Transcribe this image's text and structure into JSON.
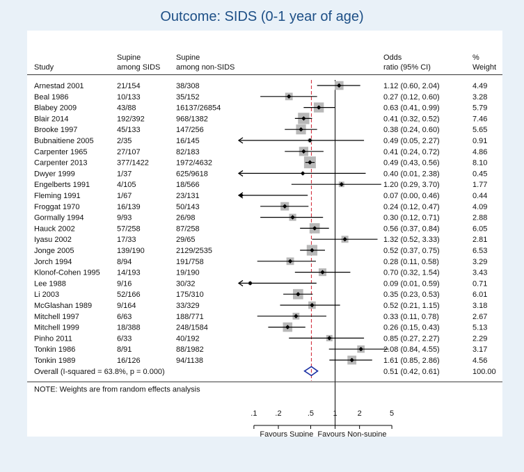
{
  "title": "Outcome: SIDS (0-1 year of age)",
  "chart_data": {
    "type": "forest",
    "columns": {
      "study": "Study",
      "col2": [
        "Supine",
        "among SIDS"
      ],
      "col3": [
        "Supine",
        "among non-SIDS"
      ],
      "col4": [
        "Odds",
        "ratio (95% CI)"
      ],
      "col5": [
        "%",
        "Weight"
      ]
    },
    "x_scale": "log",
    "x_ticks": [
      {
        "value": 0.1,
        "label": ".1"
      },
      {
        "value": 0.2,
        "label": ".2"
      },
      {
        "value": 0.5,
        "label": ".5"
      },
      {
        "value": 1,
        "label": "1"
      },
      {
        "value": 2,
        "label": "2"
      },
      {
        "value": 5,
        "label": "5"
      }
    ],
    "x_min": 0.06,
    "x_max": 6.2,
    "null_line": 1,
    "overall_line": 0.51,
    "xlabel_left": "Favours Supine",
    "xlabel_right": "Favours Non-supine",
    "studies": [
      {
        "study": "Arnestad 2001",
        "sids": "21/154",
        "nonsids": "38/308",
        "or": 1.12,
        "lo": 0.6,
        "hi": 2.04,
        "or_text": "1.12 (0.60, 2.04)",
        "weight": 4.49,
        "weight_text": "4.49"
      },
      {
        "study": "Beal 1986",
        "sids": "10/133",
        "nonsids": "35/152",
        "or": 0.27,
        "lo": 0.12,
        "hi": 0.6,
        "or_text": "0.27 (0.12, 0.60)",
        "weight": 3.28,
        "weight_text": "3.28"
      },
      {
        "study": "Blabey 2009",
        "sids": "43/88",
        "nonsids": "16137/26854",
        "or": 0.63,
        "lo": 0.41,
        "hi": 0.99,
        "or_text": "0.63 (0.41, 0.99)",
        "weight": 5.79,
        "weight_text": "5.79"
      },
      {
        "study": "Blair 2014",
        "sids": "192/392",
        "nonsids": "968/1382",
        "or": 0.41,
        "lo": 0.32,
        "hi": 0.52,
        "or_text": "0.41 (0.32, 0.52)",
        "weight": 7.46,
        "weight_text": "7.46"
      },
      {
        "study": "Brooke 1997",
        "sids": "45/133",
        "nonsids": "147/256",
        "or": 0.38,
        "lo": 0.24,
        "hi": 0.6,
        "or_text": "0.38 (0.24, 0.60)",
        "weight": 5.65,
        "weight_text": "5.65"
      },
      {
        "study": "Bubnaitiene 2005",
        "sids": "2/35",
        "nonsids": "16/145",
        "or": 0.49,
        "lo": 0.05,
        "hi": 2.27,
        "or_text": "0.49 (0.05, 2.27)",
        "weight": 0.91,
        "weight_text": "0.91"
      },
      {
        "study": "Carpenter 1965",
        "sids": "27/107",
        "nonsids": "82/183",
        "or": 0.41,
        "lo": 0.24,
        "hi": 0.72,
        "or_text": "0.41 (0.24, 0.72)",
        "weight": 4.86,
        "weight_text": "4.86"
      },
      {
        "study": "Carpenter 2013",
        "sids": "377/1422",
        "nonsids": "1972/4632",
        "or": 0.49,
        "lo": 0.43,
        "hi": 0.56,
        "or_text": "0.49 (0.43, 0.56)",
        "weight": 8.1,
        "weight_text": "8.10"
      },
      {
        "study": "Dwyer 1999",
        "sids": "1/37",
        "nonsids": "625/9618",
        "or": 0.4,
        "lo": 0.01,
        "hi": 2.38,
        "or_text": "0.40 (0.01, 2.38)",
        "weight": 0.45,
        "weight_text": "0.45"
      },
      {
        "study": "Engelberts 1991",
        "sids": "4/105",
        "nonsids": "18/566",
        "or": 1.2,
        "lo": 0.29,
        "hi": 3.7,
        "or_text": "1.20 (0.29, 3.70)",
        "weight": 1.77,
        "weight_text": "1.77"
      },
      {
        "study": "Fleming 1991",
        "sids": "1/67",
        "nonsids": "23/131",
        "or": 0.07,
        "lo": 0.0,
        "hi": 0.46,
        "or_text": "0.07 (0.00, 0.46)",
        "weight": 0.44,
        "weight_text": "0.44"
      },
      {
        "study": "Froggat 1970",
        "sids": "16/139",
        "nonsids": "50/143",
        "or": 0.24,
        "lo": 0.12,
        "hi": 0.47,
        "or_text": "0.24 (0.12, 0.47)",
        "weight": 4.09,
        "weight_text": "4.09"
      },
      {
        "study": "Gormally 1994",
        "sids": "9/93",
        "nonsids": "26/98",
        "or": 0.3,
        "lo": 0.12,
        "hi": 0.71,
        "or_text": "0.30 (0.12, 0.71)",
        "weight": 2.88,
        "weight_text": "2.88"
      },
      {
        "study": "Hauck 2002",
        "sids": "57/258",
        "nonsids": "87/258",
        "or": 0.56,
        "lo": 0.37,
        "hi": 0.84,
        "or_text": "0.56 (0.37, 0.84)",
        "weight": 6.05,
        "weight_text": "6.05"
      },
      {
        "study": "Iyasu 2002",
        "sids": "17/33",
        "nonsids": "29/65",
        "or": 1.32,
        "lo": 0.52,
        "hi": 3.33,
        "or_text": "1.32 (0.52, 3.33)",
        "weight": 2.81,
        "weight_text": "2.81"
      },
      {
        "study": "Jonge 2005",
        "sids": "139/190",
        "nonsids": "2129/2535",
        "or": 0.52,
        "lo": 0.37,
        "hi": 0.75,
        "or_text": "0.52 (0.37, 0.75)",
        "weight": 6.53,
        "weight_text": "6.53"
      },
      {
        "study": "Jorch 1994",
        "sids": "8/94",
        "nonsids": "191/758",
        "or": 0.28,
        "lo": 0.11,
        "hi": 0.58,
        "or_text": "0.28 (0.11, 0.58)",
        "weight": 3.29,
        "weight_text": "3.29"
      },
      {
        "study": "Klonof-Cohen 1995",
        "sids": "14/193",
        "nonsids": "19/190",
        "or": 0.7,
        "lo": 0.32,
        "hi": 1.54,
        "or_text": "0.70 (0.32, 1.54)",
        "weight": 3.43,
        "weight_text": "3.43"
      },
      {
        "study": "Lee 1988",
        "sids": "9/16",
        "nonsids": "30/32",
        "or": 0.09,
        "lo": 0.01,
        "hi": 0.59,
        "or_text": "0.09 (0.01, 0.59)",
        "weight": 0.71,
        "weight_text": "0.71"
      },
      {
        "study": "Li 2003",
        "sids": "52/166",
        "nonsids": "175/310",
        "or": 0.35,
        "lo": 0.23,
        "hi": 0.53,
        "or_text": "0.35 (0.23, 0.53)",
        "weight": 6.01,
        "weight_text": "6.01"
      },
      {
        "study": "McGlashan 1989",
        "sids": "9/164",
        "nonsids": "33/329",
        "or": 0.52,
        "lo": 0.21,
        "hi": 1.15,
        "or_text": "0.52 (0.21, 1.15)",
        "weight": 3.18,
        "weight_text": "3.18"
      },
      {
        "study": "Mitchell 1997",
        "sids": "6/63",
        "nonsids": "188/771",
        "or": 0.33,
        "lo": 0.11,
        "hi": 0.78,
        "or_text": "0.33 (0.11, 0.78)",
        "weight": 2.67,
        "weight_text": "2.67"
      },
      {
        "study": "Mitchell 1999",
        "sids": "18/388",
        "nonsids": "248/1584",
        "or": 0.26,
        "lo": 0.15,
        "hi": 0.43,
        "or_text": "0.26 (0.15, 0.43)",
        "weight": 5.13,
        "weight_text": "5.13"
      },
      {
        "study": "Pinho 2011",
        "sids": "6/33",
        "nonsids": "40/192",
        "or": 0.85,
        "lo": 0.27,
        "hi": 2.27,
        "or_text": "0.85 (0.27, 2.27)",
        "weight": 2.29,
        "weight_text": "2.29"
      },
      {
        "study": "Tonkin 1986",
        "sids": "8/91",
        "nonsids": "88/1982",
        "or": 2.08,
        "lo": 0.84,
        "hi": 4.55,
        "or_text": "2.08 (0.84, 4.55)",
        "weight": 3.17,
        "weight_text": "3.17"
      },
      {
        "study": "Tonkin 1989",
        "sids": "16/126",
        "nonsids": "94/1138",
        "or": 1.61,
        "lo": 0.85,
        "hi": 2.86,
        "or_text": "1.61 (0.85, 2.86)",
        "weight": 4.56,
        "weight_text": "4.56"
      }
    ],
    "overall": {
      "label": "Overall  (I-squared = 63.8%, p = 0.000)",
      "or": 0.51,
      "lo": 0.42,
      "hi": 0.61,
      "or_text": "0.51 (0.42, 0.61)",
      "weight_text": "100.00"
    },
    "note": "NOTE: Weights are from random effects analysis",
    "colors": {
      "ci_line": "#000000",
      "point": "#000000",
      "weight_box": "#b8b8b8",
      "overall_diamond": "#1a2fa3",
      "overall_line": "#d0202f",
      "title": "#1d4f86"
    }
  }
}
